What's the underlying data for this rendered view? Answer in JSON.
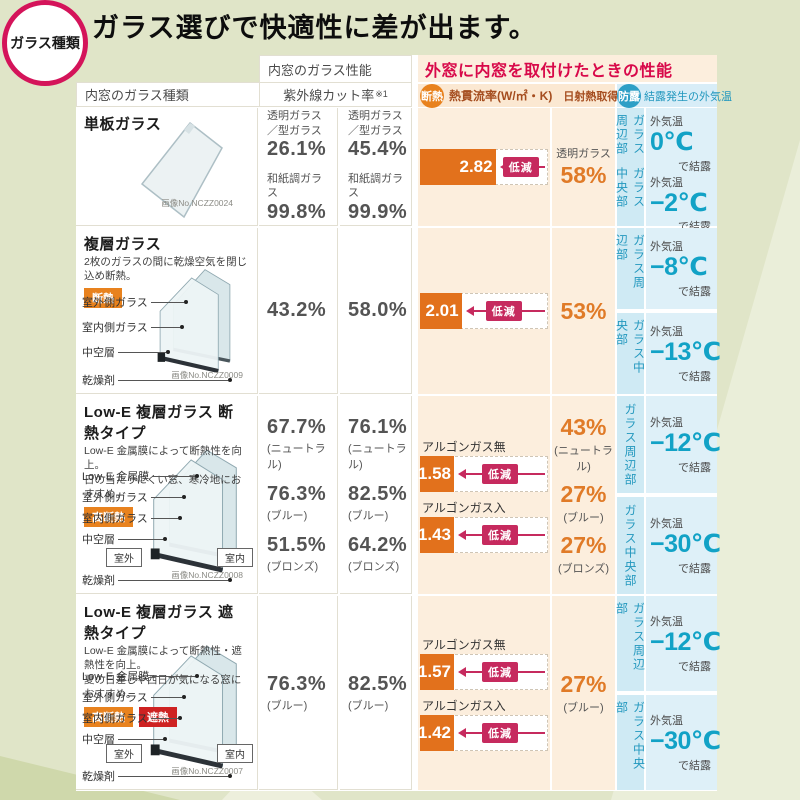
{
  "page": {
    "category_badge": "ガラス種類",
    "title": "ガラス選びで快適性に差が出ます。"
  },
  "table_header": {
    "inner_glass_type": "内窓のガラス種類",
    "inner_glass_perf": "内窓のガラス性能",
    "uv_cut_rate": "紫外線カット率",
    "uv_cut_note": "※1",
    "outer_perf_title": "外窓に内窓を取付けたときの性能",
    "insulation_badge": "断熱",
    "u_value_label": "熱貫流率(W/㎡・K)",
    "solar_gain_label": "日射熱取得率",
    "condensation_badge": "防露",
    "condensation_label": "結露発生の外気温"
  },
  "common": {
    "reduce_label": "低減",
    "temp_prefix": "外気温",
    "temp_suffix": "で結露"
  },
  "colors": {
    "accent_red": "#d8094a",
    "badge_orange": "#e8821e",
    "bar_orange": "#e2711c",
    "reduce_pink": "#c62a5e",
    "teal": "#12a2c6",
    "shield_red": "#ce2222",
    "page_green": "#e0e5c8"
  },
  "rows": [
    {
      "name": "単板ガラス",
      "desc": [],
      "badges": [],
      "glass": "single",
      "pane_labels": [],
      "bottom_label": "",
      "side_labels": [],
      "image_no": "画像No.NCZZ0024",
      "uv_inner": [
        {
          "label": "透明ガラス／型ガラス",
          "value": "26.1%",
          "note": ""
        },
        {
          "label": "和紙調ガラス",
          "value": "99.8%",
          "note": ""
        }
      ],
      "uv_outer": [
        {
          "label": "透明ガラス／型ガラス",
          "value": "45.4%",
          "note": ""
        },
        {
          "label": "和紙調ガラス",
          "value": "99.9%",
          "note": ""
        }
      ],
      "u_bars": [
        {
          "label": "",
          "value": "2.82",
          "pct": 60
        }
      ],
      "solar": [
        {
          "label": "透明ガラス",
          "value": "58%",
          "note": ""
        }
      ],
      "condensation_merged": true,
      "zones": [
        {
          "zone": "ガラス周辺部",
          "temp": "0℃"
        },
        {
          "zone": "ガラス中央部",
          "temp": "−2℃"
        }
      ]
    },
    {
      "name": "複層ガラス",
      "desc": [
        "2枚のガラスの間に乾燥空気を閉じ込め断熱。"
      ],
      "badges": [
        {
          "label": "断熱",
          "type": "orange"
        }
      ],
      "glass": "double",
      "pane_labels": [
        "室外側ガラス",
        "室内側ガラス",
        "中空層"
      ],
      "bottom_label": "乾燥剤",
      "side_labels": [],
      "image_no": "画像No.NCZZ0009",
      "uv_inner": [
        {
          "label": "",
          "value": "43.2%",
          "note": ""
        }
      ],
      "uv_outer": [
        {
          "label": "",
          "value": "58.0%",
          "note": ""
        }
      ],
      "u_bars": [
        {
          "label": "",
          "value": "2.01",
          "pct": 33
        }
      ],
      "solar": [
        {
          "label": "",
          "value": "53%",
          "note": ""
        }
      ],
      "condensation_merged": false,
      "zones": [
        {
          "zone": "ガラス周辺部",
          "temp": "−8℃"
        },
        {
          "zone": "ガラス中央部",
          "temp": "−13℃"
        }
      ]
    },
    {
      "name": "Low-E 複層ガラス 断熱タイプ",
      "desc": [
        "Low-E 金属膜によって断熱性を向上。",
        "日の当たりにくい窓、寒冷地におすすめ。"
      ],
      "badges": [
        {
          "label": "高断熱",
          "type": "orange"
        }
      ],
      "glass": "double",
      "pane_labels": [
        "Low-E 金属膜",
        "室外側ガラス",
        "室内側ガラス",
        "中空層"
      ],
      "bottom_label": "乾燥剤",
      "side_labels": [
        "室外",
        "室内"
      ],
      "image_no": "画像No.NCZZ0008",
      "uv_inner": [
        {
          "label": "",
          "value": "67.7%",
          "note": "(ニュートラル)"
        },
        {
          "label": "",
          "value": "76.3%",
          "note": "(ブルー)"
        },
        {
          "label": "",
          "value": "51.5%",
          "note": "(ブロンズ)"
        }
      ],
      "uv_outer": [
        {
          "label": "",
          "value": "76.1%",
          "note": "(ニュートラル)"
        },
        {
          "label": "",
          "value": "82.5%",
          "note": "(ブルー)"
        },
        {
          "label": "",
          "value": "64.2%",
          "note": "(ブロンズ)"
        }
      ],
      "u_bars": [
        {
          "label": "アルゴンガス無",
          "value": "1.58",
          "pct": 27
        },
        {
          "label": "アルゴンガス入",
          "value": "1.43",
          "pct": 27
        }
      ],
      "solar": [
        {
          "label": "",
          "value": "43%",
          "note": "(ニュートラル)"
        },
        {
          "label": "",
          "value": "27%",
          "note": "(ブルー)"
        },
        {
          "label": "",
          "value": "27%",
          "note": "(ブロンズ)"
        }
      ],
      "condensation_merged": false,
      "zones": [
        {
          "zone": "ガラス周辺部",
          "temp": "−12℃"
        },
        {
          "zone": "ガラス中央部",
          "temp": "−30℃"
        }
      ]
    },
    {
      "name": "Low-E 複層ガラス 遮熱タイプ",
      "desc": [
        "Low-E 金属膜によって断熱性・遮熱性を向上。",
        "夏の日差しや西日が気になる窓におすすめ。"
      ],
      "badges": [
        {
          "label": "高断熱",
          "type": "orange"
        },
        {
          "label": "遮熱",
          "type": "red"
        }
      ],
      "glass": "double",
      "pane_labels": [
        "Low-E 金属膜",
        "室外側ガラス",
        "室内側ガラス",
        "中空層"
      ],
      "bottom_label": "乾燥剤",
      "side_labels": [
        "室外",
        "室内"
      ],
      "image_no": "画像No.NCZZ0007",
      "uv_inner": [
        {
          "label": "",
          "value": "76.3%",
          "note": "(ブルー)"
        }
      ],
      "uv_outer": [
        {
          "label": "",
          "value": "82.5%",
          "note": "(ブルー)"
        }
      ],
      "u_bars": [
        {
          "label": "アルゴンガス無",
          "value": "1.57",
          "pct": 27
        },
        {
          "label": "アルゴンガス入",
          "value": "1.42",
          "pct": 27
        }
      ],
      "solar": [
        {
          "label": "",
          "value": "27%",
          "note": "(ブルー)"
        }
      ],
      "condensation_merged": false,
      "zones": [
        {
          "zone": "ガラス周辺部",
          "temp": "−12℃"
        },
        {
          "zone": "ガラス中央部",
          "temp": "−30℃"
        }
      ]
    }
  ]
}
